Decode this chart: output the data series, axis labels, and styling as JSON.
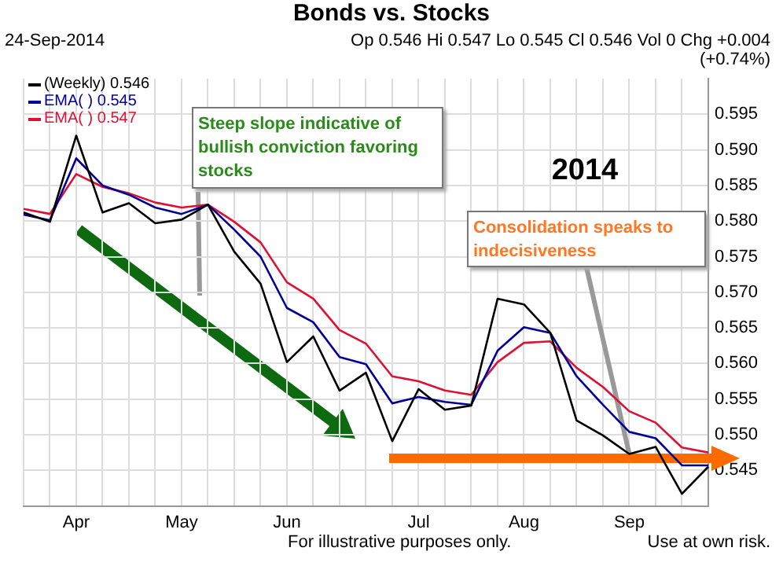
{
  "chart_data": {
    "type": "line",
    "title": "Bonds vs. Stocks",
    "subtitle": "24-Sep-2014",
    "categories": [
      null,
      null,
      "Apr",
      null,
      null,
      null,
      "May",
      null,
      null,
      null,
      "Jun",
      null,
      null,
      null,
      null,
      "Jul",
      null,
      null,
      null,
      "Aug",
      null,
      null,
      null,
      "Sep",
      null,
      null,
      null
    ],
    "series": [
      {
        "name": "(Weekly) 0.546",
        "color": "#000000",
        "values": [
          0.5812,
          0.5799,
          0.592,
          0.5812,
          0.5825,
          0.5797,
          0.5802,
          0.5823,
          0.5757,
          0.5712,
          0.5602,
          0.5638,
          0.5562,
          0.5587,
          0.5491,
          0.5564,
          0.5535,
          0.5541,
          0.5691,
          0.5683,
          0.5643,
          0.552,
          0.5499,
          0.5473,
          0.5483,
          0.5417,
          0.5455
        ]
      },
      {
        "name": "EMA( ) 0.545",
        "color": "#000099",
        "values": [
          0.5809,
          0.5801,
          0.5888,
          0.585,
          0.5837,
          0.5819,
          0.581,
          0.5823,
          0.5788,
          0.575,
          0.5678,
          0.5658,
          0.5609,
          0.5599,
          0.5544,
          0.5553,
          0.5546,
          0.5542,
          0.5618,
          0.5651,
          0.5643,
          0.5582,
          0.5542,
          0.5504,
          0.5495,
          0.5457,
          0.5457
        ]
      },
      {
        "name": "EMA( ) 0.547",
        "color": "#dd1133",
        "values": [
          0.5817,
          0.581,
          0.5866,
          0.5848,
          0.5839,
          0.5826,
          0.5819,
          0.5823,
          0.5799,
          0.577,
          0.5714,
          0.5691,
          0.5647,
          0.5628,
          0.5582,
          0.5575,
          0.5562,
          0.5556,
          0.5602,
          0.5629,
          0.5631,
          0.5594,
          0.5567,
          0.5533,
          0.5517,
          0.5482,
          0.5475
        ]
      }
    ],
    "ylim": [
      0.54,
      0.6
    ],
    "yticks": [
      0.545,
      {
        "value": 0.55,
        "label": "0.550"
      },
      0.555,
      {
        "value": 0.56,
        "label": "0.560"
      },
      0.565,
      {
        "value": 0.57,
        "label": "0.570"
      },
      0.575,
      {
        "value": 0.58,
        "label": "0.580"
      },
      0.585,
      {
        "value": 0.59,
        "label": "0.590"
      },
      0.595
    ],
    "ref_lines": [
      {
        "axis": "y",
        "value": 0.5467,
        "color": "#ff6a00"
      }
    ],
    "grid": true,
    "legend": "top left",
    "marker": "none",
    "line_style": "solid",
    "annotations": [
      "Op 0.546  Hi 0.547  Lo 0.545  Cl 0.546  Vol 0  Chg +0.004 (+0.74%)",
      "Steep slope indicative of bullish conviction favoring stocks",
      "2014",
      {
        "text": "Consolidation speaks to indecisiveness",
        "x": "Sep",
        "y": 0.5473
      },
      "For illustrative purposes only.",
      "Use at own risk."
    ]
  }
}
